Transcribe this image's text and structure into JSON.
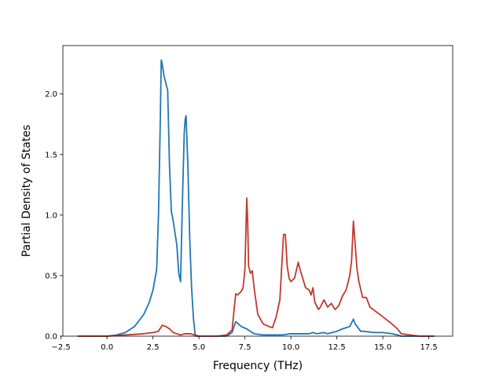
{
  "chart_data": {
    "type": "line",
    "title": "",
    "xlabel": "Frequency (THz)",
    "ylabel": "Partial Density of States",
    "xlim": [
      -2.4,
      18.8
    ],
    "ylim": [
      0.0,
      2.4
    ],
    "grid": false,
    "xticks": [
      -2.5,
      0.0,
      2.5,
      5.0,
      7.5,
      10.0,
      12.5,
      15.0,
      17.5
    ],
    "xtick_labels": [
      "−2.5",
      "0.0",
      "2.5",
      "5.0",
      "7.5",
      "10.0",
      "12.5",
      "15.0",
      "17.5"
    ],
    "yticks": [
      0.0,
      0.5,
      1.0,
      1.5,
      2.0
    ],
    "ytick_labels": [
      "0.0",
      "0.5",
      "1.0",
      "1.5",
      "2.0"
    ],
    "series": [
      {
        "color": "#1f77b4",
        "x": [
          -1.6,
          -0.5,
          0.0,
          0.5,
          1.0,
          1.5,
          2.0,
          2.3,
          2.5,
          2.7,
          2.8,
          2.9,
          2.95,
          3.0,
          3.1,
          3.3,
          3.4,
          3.5,
          3.6,
          3.8,
          3.9,
          4.0,
          4.1,
          4.2,
          4.25,
          4.3,
          4.4,
          4.5,
          4.6,
          4.7,
          4.8,
          5.0,
          5.5,
          6.0,
          6.5,
          6.8,
          7.0,
          7.3,
          7.6,
          7.8,
          8.0,
          8.5,
          9.0,
          9.5,
          10.0,
          10.5,
          11.0,
          11.2,
          11.4,
          11.8,
          12.0,
          12.5,
          12.8,
          13.0,
          13.2,
          13.4,
          13.5,
          13.6,
          13.8,
          14.0,
          14.5,
          15.0,
          15.5,
          15.8,
          16.0,
          17.0,
          17.8
        ],
        "y": [
          0.0,
          0.0,
          0.0,
          0.01,
          0.03,
          0.08,
          0.18,
          0.28,
          0.38,
          0.55,
          1.0,
          1.8,
          2.28,
          2.25,
          2.15,
          2.03,
          1.4,
          1.03,
          0.95,
          0.75,
          0.52,
          0.45,
          1.1,
          1.68,
          1.79,
          1.82,
          1.4,
          0.8,
          0.4,
          0.15,
          0.0,
          0.0,
          0.0,
          0.0,
          0.0,
          0.03,
          0.12,
          0.08,
          0.06,
          0.04,
          0.02,
          0.01,
          0.01,
          0.01,
          0.02,
          0.02,
          0.02,
          0.03,
          0.02,
          0.03,
          0.02,
          0.04,
          0.06,
          0.07,
          0.08,
          0.14,
          0.1,
          0.08,
          0.04,
          0.04,
          0.03,
          0.03,
          0.02,
          0.01,
          0.0,
          0.0,
          0.0
        ]
      },
      {
        "color": "#c0392b",
        "x": [
          -1.6,
          -0.5,
          0.0,
          1.0,
          2.0,
          2.5,
          2.8,
          3.0,
          3.2,
          3.4,
          3.6,
          3.8,
          4.0,
          4.2,
          4.5,
          4.8,
          5.0,
          5.5,
          6.0,
          6.5,
          6.8,
          7.0,
          7.1,
          7.3,
          7.4,
          7.5,
          7.55,
          7.6,
          7.65,
          7.7,
          7.8,
          7.9,
          8.0,
          8.2,
          8.5,
          8.8,
          9.0,
          9.2,
          9.4,
          9.6,
          9.7,
          9.8,
          9.9,
          10.0,
          10.2,
          10.4,
          10.5,
          10.7,
          10.8,
          11.0,
          11.1,
          11.2,
          11.3,
          11.5,
          11.6,
          11.8,
          12.0,
          12.2,
          12.4,
          12.6,
          12.8,
          13.0,
          13.2,
          13.3,
          13.4,
          13.5,
          13.6,
          13.7,
          13.9,
          14.1,
          14.3,
          15.0,
          15.5,
          15.8,
          16.0,
          16.5,
          17.0,
          17.8
        ],
        "y": [
          0.0,
          0.0,
          0.0,
          0.01,
          0.02,
          0.03,
          0.04,
          0.09,
          0.08,
          0.06,
          0.03,
          0.02,
          0.01,
          0.02,
          0.02,
          0.01,
          0.0,
          0.0,
          0.0,
          0.01,
          0.05,
          0.35,
          0.34,
          0.37,
          0.4,
          0.55,
          0.85,
          1.14,
          0.95,
          0.58,
          0.52,
          0.54,
          0.4,
          0.18,
          0.1,
          0.08,
          0.07,
          0.16,
          0.3,
          0.84,
          0.84,
          0.58,
          0.48,
          0.45,
          0.48,
          0.61,
          0.55,
          0.45,
          0.4,
          0.38,
          0.34,
          0.4,
          0.28,
          0.22,
          0.24,
          0.3,
          0.24,
          0.27,
          0.22,
          0.25,
          0.33,
          0.38,
          0.5,
          0.62,
          0.95,
          0.75,
          0.55,
          0.45,
          0.32,
          0.32,
          0.24,
          0.16,
          0.1,
          0.06,
          0.02,
          0.01,
          0.0,
          0.0
        ]
      }
    ]
  }
}
